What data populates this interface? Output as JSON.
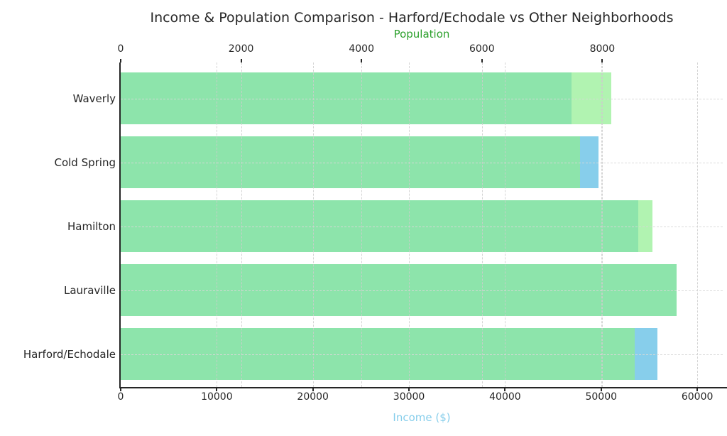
{
  "title": "Income & Population Comparison - Harford/Echodale vs Other Neighborhoods",
  "colors": {
    "population_bar": "rgba(144,238,144,0.7)",
    "income_bar": "#87CEEB",
    "population_axis_label": "#2ca02c",
    "income_axis_label": "#87CEEB",
    "axis_and_text": "#262626",
    "gridline": "#cdcdcd"
  },
  "chart_data": {
    "type": "bar",
    "orientation": "horizontal",
    "title": "Income & Population Comparison - Harford/Echodale vs Other Neighborhoods",
    "categories": [
      "Waverly",
      "Cold Spring",
      "Hamilton",
      "Lauraville",
      "Harford/Echodale"
    ],
    "series": [
      {
        "name": "Population",
        "axis": "top",
        "values": [
          8150,
          7630,
          8830,
          9230,
          8540
        ]
      },
      {
        "name": "Income",
        "axis": "bottom",
        "values": [
          46900,
          49700,
          53850,
          57850,
          55850
        ]
      }
    ],
    "top_axis": {
      "label": "Population",
      "ticks": [
        0,
        2000,
        4000,
        6000,
        8000
      ],
      "min": 0,
      "max": 10000
    },
    "bottom_axis": {
      "label": "Income ($)",
      "ticks": [
        0,
        10000,
        20000,
        30000,
        40000,
        50000,
        60000
      ],
      "min": 0,
      "max": 62650
    },
    "grid": true,
    "grid_style": "dashed",
    "legend": "none"
  }
}
